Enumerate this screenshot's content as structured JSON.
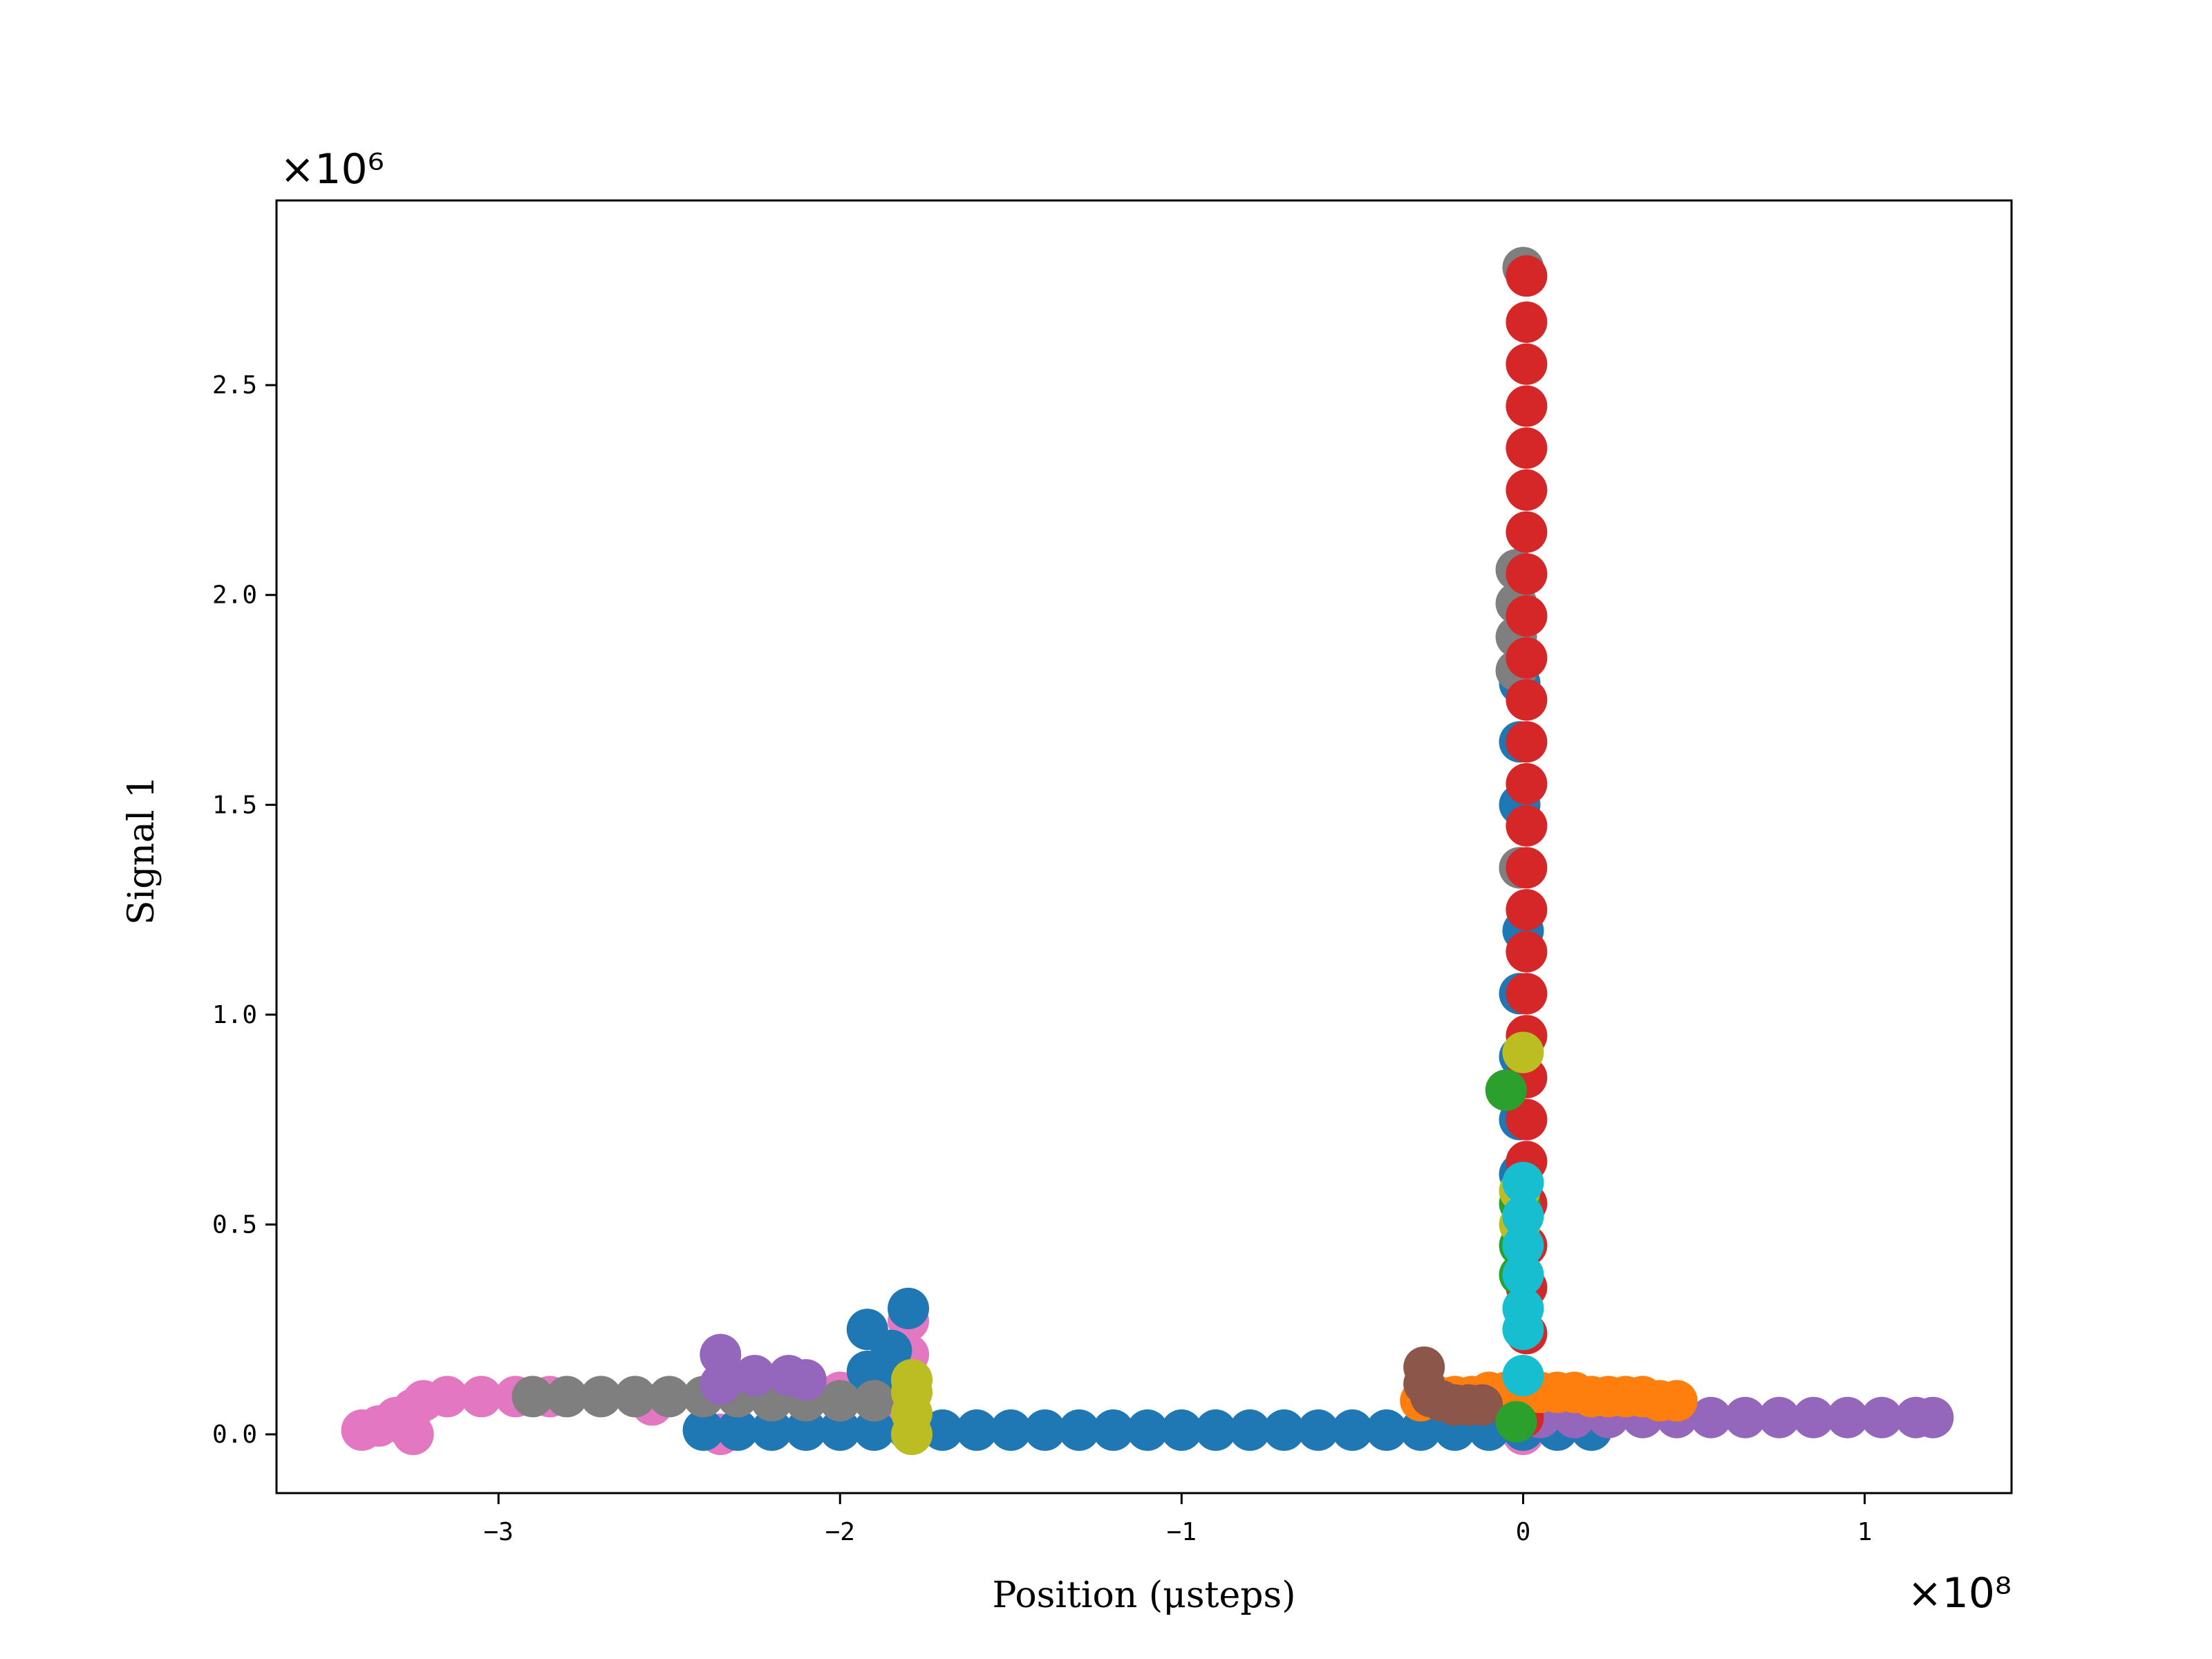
{
  "chart_data": {
    "type": "scatter",
    "title": "",
    "xlabel": "Position (μsteps)",
    "ylabel": "Signal 1",
    "x_multiplier": "×10⁸",
    "y_multiplier": "×10⁶",
    "x_scale": 100000000,
    "y_scale": 1000000,
    "xlim": [
      -3.65,
      1.43
    ],
    "ylim": [
      -0.14,
      2.94
    ],
    "xticks": [
      -3,
      -2,
      -1,
      0,
      1
    ],
    "xtick_labels": [
      "−3",
      "−2",
      "−1",
      "0",
      "1"
    ],
    "yticks": [
      0.0,
      0.5,
      1.0,
      1.5,
      2.0,
      2.5
    ],
    "ytick_labels": [
      "0.0",
      "0.5",
      "1.0",
      "1.5",
      "2.0",
      "2.5"
    ],
    "grid": false,
    "legend": "none",
    "colors": {
      "blue": "#1f77b4",
      "orange": "#ff7f0e",
      "green": "#2ca02c",
      "red": "#d62728",
      "purple": "#9467bd",
      "brown": "#8c564b",
      "pink": "#e377c2",
      "gray": "#7f7f7f",
      "olive": "#bcbd22",
      "cyan": "#17becf"
    },
    "series": [
      {
        "color": "#e377c2",
        "points": [
          [
            -3.4,
            0.01
          ],
          [
            -3.35,
            0.02
          ],
          [
            -3.3,
            0.04
          ],
          [
            -3.25,
            0.06
          ],
          [
            -3.22,
            0.08
          ],
          [
            -3.15,
            0.09
          ],
          [
            -3.05,
            0.09
          ],
          [
            -2.95,
            0.09
          ],
          [
            -2.85,
            0.09
          ],
          [
            -3.27,
            0.02
          ],
          [
            -3.25,
            0.0
          ],
          [
            -2.55,
            0.07
          ],
          [
            -2.35,
            0.0
          ],
          [
            -1.8,
            0.27
          ],
          [
            -1.8,
            0.19
          ],
          [
            0.0,
            0.0
          ],
          [
            -2.0,
            0.1
          ],
          [
            -1.9,
            0.11
          ],
          [
            -1.8,
            0.12
          ],
          [
            -1.8,
            0.04
          ]
        ]
      },
      {
        "color": "#1f77b4",
        "points": [
          [
            -2.4,
            0.01
          ],
          [
            -2.3,
            0.01
          ],
          [
            -2.2,
            0.01
          ],
          [
            -2.1,
            0.01
          ],
          [
            -2.0,
            0.01
          ],
          [
            -1.9,
            0.01
          ],
          [
            -1.8,
            0.01
          ],
          [
            -1.7,
            0.01
          ],
          [
            -1.6,
            0.01
          ],
          [
            -1.5,
            0.01
          ],
          [
            -1.4,
            0.01
          ],
          [
            -1.3,
            0.01
          ],
          [
            -1.2,
            0.01
          ],
          [
            -1.1,
            0.01
          ],
          [
            -1.0,
            0.01
          ],
          [
            -0.9,
            0.01
          ],
          [
            -0.8,
            0.01
          ],
          [
            -0.7,
            0.01
          ],
          [
            -0.6,
            0.01
          ],
          [
            -0.5,
            0.01
          ],
          [
            -0.4,
            0.01
          ],
          [
            -0.3,
            0.01
          ],
          [
            -0.2,
            0.01
          ],
          [
            -0.1,
            0.01
          ],
          [
            0.0,
            0.01
          ],
          [
            0.1,
            0.01
          ],
          [
            0.2,
            0.01
          ],
          [
            -1.92,
            0.25
          ],
          [
            -1.92,
            0.15
          ],
          [
            -1.85,
            0.2
          ],
          [
            -1.8,
            0.3
          ],
          [
            -1.82,
            0.12
          ],
          [
            -0.01,
            0.62
          ],
          [
            -0.01,
            0.75
          ],
          [
            -0.01,
            0.9
          ],
          [
            -0.01,
            1.05
          ],
          [
            0.0,
            1.2
          ],
          [
            -0.01,
            1.35
          ],
          [
            -0.01,
            1.5
          ],
          [
            -0.01,
            1.65
          ],
          [
            -0.01,
            1.79
          ]
        ]
      },
      {
        "color": "#7f7f7f",
        "points": [
          [
            -2.9,
            0.09
          ],
          [
            -2.8,
            0.09
          ],
          [
            -2.7,
            0.09
          ],
          [
            -2.6,
            0.09
          ],
          [
            -2.5,
            0.09
          ],
          [
            -2.4,
            0.09
          ],
          [
            -2.3,
            0.09
          ],
          [
            -2.2,
            0.08
          ],
          [
            -2.1,
            0.08
          ],
          [
            -2.0,
            0.08
          ],
          [
            -1.9,
            0.08
          ],
          [
            -0.02,
            2.06
          ],
          [
            -0.02,
            1.98
          ],
          [
            -0.02,
            1.9
          ],
          [
            -0.02,
            1.82
          ],
          [
            0.0,
            2.78
          ],
          [
            -0.01,
            1.35
          ]
        ]
      },
      {
        "color": "#9467bd",
        "points": [
          [
            -2.35,
            0.19
          ],
          [
            -2.35,
            0.12
          ],
          [
            -2.25,
            0.14
          ],
          [
            -2.15,
            0.14
          ],
          [
            -2.1,
            0.13
          ],
          [
            0.05,
            0.04
          ],
          [
            0.15,
            0.04
          ],
          [
            0.25,
            0.04
          ],
          [
            0.35,
            0.04
          ],
          [
            0.45,
            0.04
          ],
          [
            0.55,
            0.04
          ],
          [
            0.65,
            0.04
          ],
          [
            0.75,
            0.04
          ],
          [
            0.85,
            0.04
          ],
          [
            0.95,
            0.04
          ],
          [
            1.05,
            0.04
          ],
          [
            1.15,
            0.04
          ],
          [
            1.2,
            0.04
          ]
        ]
      },
      {
        "color": "#d62728",
        "points": [
          [
            0.01,
            2.76
          ],
          [
            0.01,
            2.65
          ],
          [
            0.01,
            2.55
          ],
          [
            0.01,
            2.45
          ],
          [
            0.01,
            2.35
          ],
          [
            0.01,
            2.25
          ],
          [
            0.01,
            2.15
          ],
          [
            0.01,
            2.05
          ],
          [
            0.01,
            1.95
          ],
          [
            0.01,
            1.85
          ],
          [
            0.01,
            1.75
          ],
          [
            0.01,
            1.65
          ],
          [
            0.01,
            1.55
          ],
          [
            0.01,
            1.45
          ],
          [
            0.01,
            1.35
          ],
          [
            0.01,
            1.25
          ],
          [
            0.01,
            1.15
          ],
          [
            0.01,
            1.05
          ],
          [
            0.01,
            0.95
          ],
          [
            0.01,
            0.85
          ],
          [
            0.01,
            0.75
          ],
          [
            0.01,
            0.65
          ],
          [
            0.01,
            0.55
          ],
          [
            0.01,
            0.45
          ],
          [
            0.01,
            0.35
          ],
          [
            0.01,
            0.24
          ],
          [
            0.0,
            0.04
          ]
        ]
      },
      {
        "color": "#ff7f0e",
        "points": [
          [
            -0.3,
            0.08
          ],
          [
            -0.25,
            0.09
          ],
          [
            -0.2,
            0.09
          ],
          [
            -0.15,
            0.09
          ],
          [
            -0.1,
            0.1
          ],
          [
            -0.05,
            0.1
          ],
          [
            0.0,
            0.1
          ],
          [
            0.05,
            0.1
          ],
          [
            0.1,
            0.1
          ],
          [
            0.15,
            0.1
          ],
          [
            0.2,
            0.09
          ],
          [
            0.25,
            0.09
          ],
          [
            0.3,
            0.09
          ],
          [
            0.35,
            0.09
          ],
          [
            0.4,
            0.08
          ],
          [
            0.45,
            0.08
          ]
        ]
      },
      {
        "color": "#8c564b",
        "points": [
          [
            -0.29,
            0.16
          ],
          [
            -0.29,
            0.12
          ],
          [
            -0.27,
            0.09
          ],
          [
            -0.24,
            0.08
          ],
          [
            -0.2,
            0.07
          ],
          [
            -0.16,
            0.07
          ],
          [
            -0.12,
            0.07
          ]
        ]
      },
      {
        "color": "#2ca02c",
        "points": [
          [
            -0.05,
            0.82
          ],
          [
            -0.01,
            0.55
          ],
          [
            -0.01,
            0.45
          ],
          [
            -0.01,
            0.38
          ],
          [
            -0.02,
            0.03
          ]
        ]
      },
      {
        "color": "#bcbd22",
        "points": [
          [
            0.0,
            0.91
          ],
          [
            -0.01,
            0.58
          ],
          [
            -0.01,
            0.5
          ],
          [
            -1.79,
            0.0
          ],
          [
            -1.79,
            0.05
          ],
          [
            -1.79,
            0.1
          ],
          [
            -1.79,
            0.13
          ]
        ]
      },
      {
        "color": "#17becf",
        "points": [
          [
            0.0,
            0.6
          ],
          [
            0.0,
            0.52
          ],
          [
            0.0,
            0.45
          ],
          [
            0.0,
            0.38
          ],
          [
            0.0,
            0.3
          ],
          [
            0.0,
            0.25
          ],
          [
            0.0,
            0.14
          ]
        ]
      }
    ]
  }
}
